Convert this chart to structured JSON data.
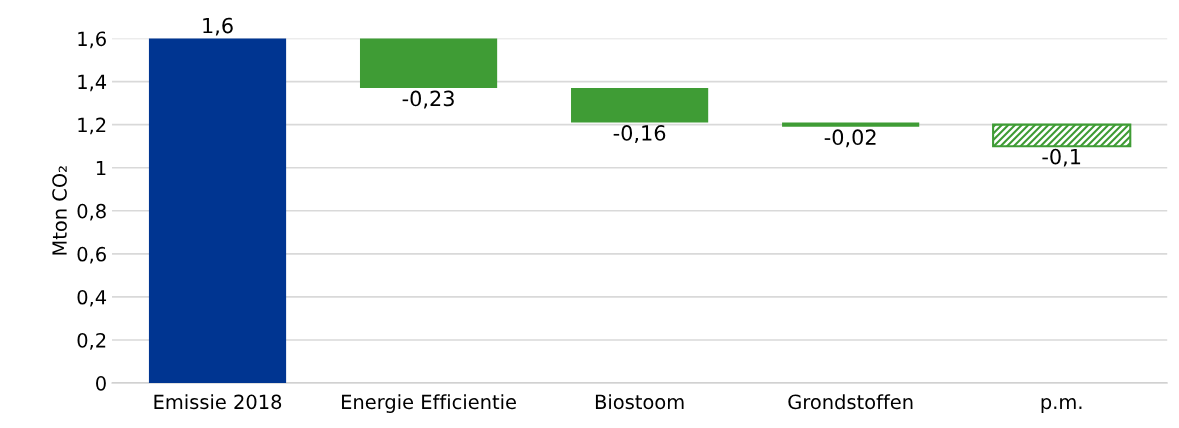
{
  "chart_data": {
    "type": "bar",
    "ylabel": "Mton CO₂",
    "categories": [
      "Emissie 2018",
      "Energie Efficientie",
      "Biostoom",
      "Grondstoffen",
      "p.m."
    ],
    "series": [
      {
        "colors": [
          "#003591",
          "#3f9c35",
          "#3f9c35",
          "#3f9c35",
          null
        ],
        "values": [
          1.6,
          -0.23,
          -0.16,
          -0.02,
          null
        ],
        "base": [
          0,
          1.6,
          1.37,
          1.21,
          null
        ],
        "value_labels": [
          "1,6",
          "-0,23",
          "-0,16",
          "-0,02",
          null
        ]
      },
      {
        "color": "#3f9c35",
        "values": [
          null,
          null,
          null,
          null,
          -0.1
        ],
        "base": [
          null,
          null,
          null,
          null,
          1.2
        ],
        "value_labels": [
          null,
          null,
          null,
          null,
          "-0,1"
        ]
      }
    ],
    "ylim": [
      0,
      1.6
    ],
    "yticks": [
      0,
      {
        "value": 0.2,
        "label": "0,2"
      },
      {
        "value": 0.4,
        "label": "0,4"
      },
      {
        "value": 0.6,
        "label": "0,6"
      },
      {
        "value": 0.8,
        "label": "0,8"
      },
      1,
      {
        "value": 1.2,
        "label": "1,2"
      },
      {
        "value": 1.4,
        "label": "1,4"
      },
      {
        "value": 1.6,
        "label": "1,6"
      }
    ],
    "grid": "y"
  }
}
